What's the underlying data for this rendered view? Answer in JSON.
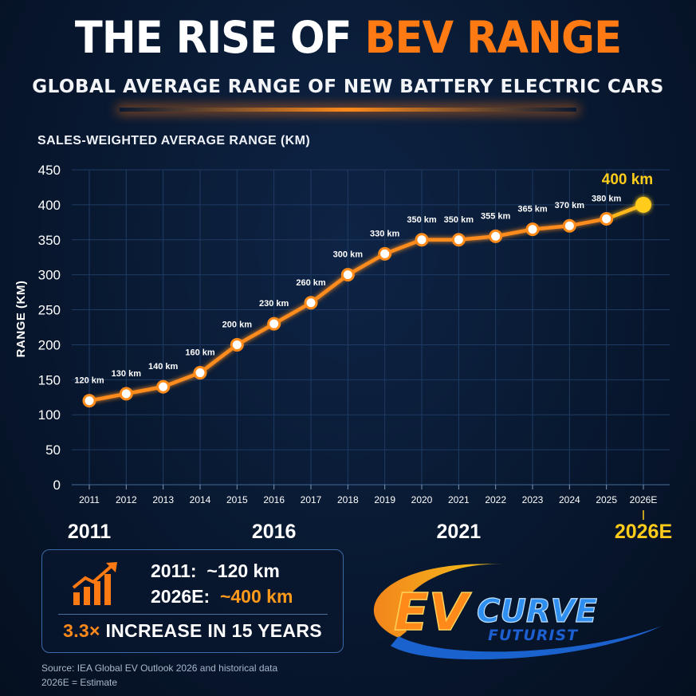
{
  "header": {
    "title_part1": "THE RISE OF",
    "title_part2": "BEV RANGE",
    "subtitle": "GLOBAL AVERAGE RANGE OF NEW BATTERY ELECTRIC CARS"
  },
  "chart_data": {
    "type": "line",
    "title": "SALES-WEIGHTED AVERAGE RANGE (KM)",
    "ylabel": "RANGE (KM)",
    "xlabel": "",
    "categories": [
      "2011",
      "2012",
      "2013",
      "2014",
      "2015",
      "2016",
      "2017",
      "2018",
      "2019",
      "2020",
      "2021",
      "2022",
      "2023",
      "2024",
      "2025",
      "2026E"
    ],
    "values": [
      120,
      130,
      140,
      160,
      200,
      230,
      260,
      300,
      330,
      350,
      350,
      355,
      365,
      370,
      380,
      400
    ],
    "data_labels": [
      "120 km",
      "130 km",
      "140 km",
      "160 km",
      "200 km",
      "230 km",
      "260 km",
      "300 km",
      "330 km",
      "350 km",
      "350 km",
      "355 km",
      "365 km",
      "370 km",
      "380 km",
      "400 km"
    ],
    "ylim": [
      0,
      450
    ],
    "yticks": [
      "0",
      "50",
      "100",
      "150",
      "200",
      "250",
      "300",
      "350",
      "400",
      "450"
    ],
    "major_x_labels": [
      "2011",
      "2016",
      "2021",
      "2026E"
    ],
    "grid": true,
    "line_color": "#ff8c1a",
    "highlight_color": "#ffcc1a"
  },
  "summary": {
    "row1_label": "2011:",
    "row1_value": "~120 km",
    "row2_label": "2026E:",
    "row2_value": "~400 km",
    "increase_multiple": "3.3×",
    "increase_text": "INCREASE IN 15 YEARS",
    "icon": "growth-chart-icon"
  },
  "source": {
    "line1": "Source: IEA Global EV Outlook 2026 and historical data",
    "line2": "2026E = Estimate"
  },
  "logo": {
    "text1": "EV",
    "text2": "CURVE",
    "text3": "FUTURIST"
  },
  "colors": {
    "accent": "#ff7a12",
    "highlight": "#ffcc1a",
    "background": "#081830"
  }
}
